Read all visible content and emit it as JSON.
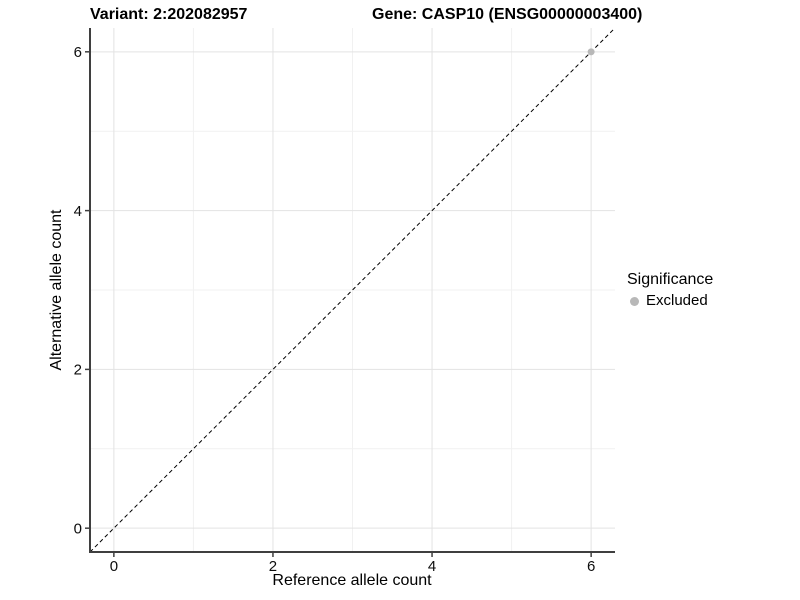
{
  "header": {
    "variant_title": "Variant: 2:202082957",
    "gene_title": "Gene: CASP10 (ENSG00000003400)"
  },
  "chart_data": {
    "type": "scatter",
    "title": "Variant: 2:202082957 — Gene: CASP10 (ENSG00000003400)",
    "xlabel": "Reference allele count",
    "ylabel": "Alternative allele count",
    "xlim": [
      -0.3,
      6.3
    ],
    "ylim": [
      -0.3,
      6.3
    ],
    "xticks": [
      0,
      2,
      4,
      6
    ],
    "yticks": [
      0,
      2,
      4,
      6
    ],
    "minor_gridlines_x": [
      1,
      3,
      5
    ],
    "minor_gridlines_y": [
      1,
      3,
      5
    ],
    "grid": true,
    "series": [
      {
        "name": "Excluded",
        "color": "#b8b8b8",
        "points": [
          [
            6,
            6
          ]
        ]
      }
    ],
    "identity_line": {
      "from": [
        -0.3,
        -0.3
      ],
      "to": [
        6.3,
        6.3
      ],
      "style": "dashed",
      "color": "#000000"
    },
    "legend": {
      "title": "Significance",
      "position": "right",
      "items": [
        {
          "label": "Excluded",
          "color": "#b8b8b8"
        }
      ]
    }
  },
  "colors": {
    "background": "#ffffff",
    "axis_line": "#3f3f3f",
    "tick_mark": "#3f3f3f",
    "tick_text": "#0d0d0d",
    "grid_major": "#e3e3e3",
    "grid_minor": "#f1f1f1",
    "point": "#b8b8b8"
  }
}
